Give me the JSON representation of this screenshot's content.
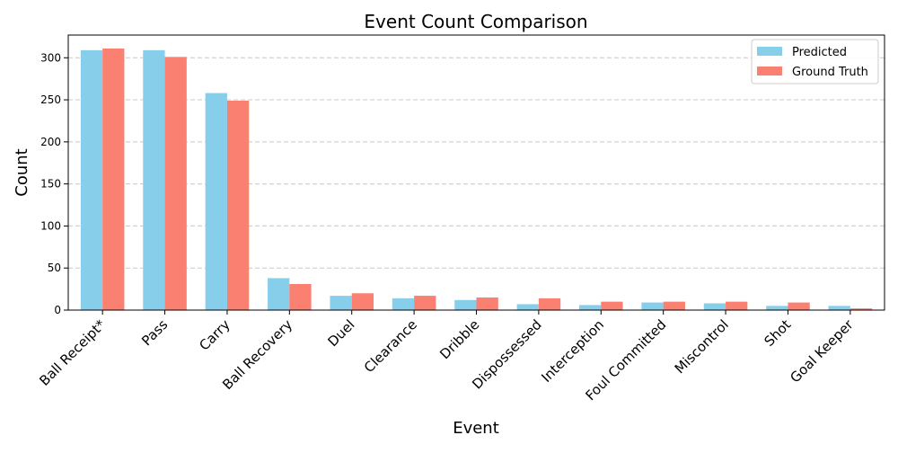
{
  "chart_data": {
    "type": "bar",
    "title": "Event Count Comparison",
    "xlabel": "Event",
    "ylabel": "Count",
    "categories": [
      "Ball Receipt*",
      "Pass",
      "Carry",
      "Ball Recovery",
      "Duel",
      "Clearance",
      "Dribble",
      "Dispossessed",
      "Interception",
      "Foul Committed",
      "Miscontrol",
      "Shot",
      "Goal Keeper"
    ],
    "series": [
      {
        "name": "Predicted",
        "color": "#87ceeb",
        "values": [
          309,
          309,
          258,
          38,
          17,
          14,
          12,
          7,
          6,
          9,
          8,
          5,
          5
        ]
      },
      {
        "name": "Ground Truth",
        "color": "#fa8072",
        "values": [
          311,
          301,
          249,
          31,
          20,
          17,
          15,
          14,
          10,
          10,
          10,
          9,
          2
        ]
      }
    ],
    "ylim": [
      0,
      327
    ],
    "yticks": [
      0,
      50,
      100,
      150,
      200,
      250,
      300
    ],
    "grid": "y-dashed",
    "legend_position": "top-right"
  }
}
